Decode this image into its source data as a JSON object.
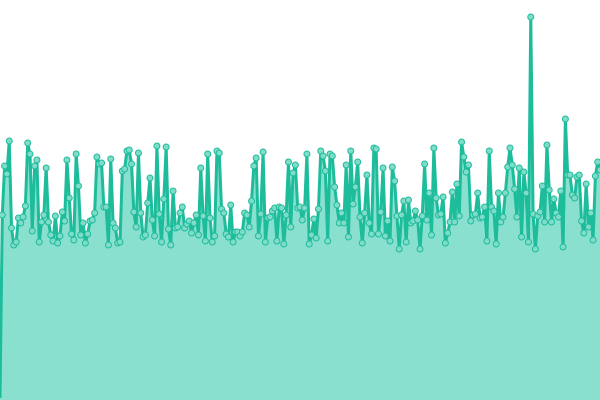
{
  "chart_data": {
    "type": "area",
    "title": "",
    "xlabel": "",
    "ylabel": "",
    "ylim": [
      0,
      400
    ],
    "grid": false,
    "legend": "none",
    "markers": true,
    "colors": {
      "line": "#1dbc9b",
      "fill": "#8ae0cf",
      "marker_fill": "#7fdcc8",
      "marker_stroke": "#1dbc9b"
    },
    "series": [
      {
        "values": [
          2,
          185,
          234,
          226,
          259,
          172,
          155,
          158,
          182,
          177,
          183,
          194,
          257,
          246,
          169,
          234,
          240,
          158,
          178,
          185,
          232,
          178,
          165,
          159,
          184,
          157,
          164,
          188,
          179,
          240,
          202,
          166,
          160,
          246,
          214,
          165,
          177,
          157,
          166,
          179,
          180,
          187,
          243,
          236,
          237,
          193,
          193,
          155,
          241,
          177,
          172,
          157,
          158,
          229,
          231,
          249,
          250,
          236,
          188,
          173,
          247,
          187,
          163,
          165,
          197,
          222,
          180,
          164,
          254,
          186,
          158,
          201,
          253,
          171,
          155,
          209,
          172,
          173,
          187,
          193,
          172,
          176,
          179,
          167,
          177,
          185,
          165,
          232,
          184,
          159,
          246,
          182,
          158,
          164,
          249,
          247,
          191,
          187,
          166,
          163,
          195,
          158,
          168,
          168,
          164,
          168,
          187,
          185,
          173,
          199,
          234,
          242,
          164,
          186,
          248,
          158,
          182,
          183,
          189,
          192,
          159,
          193,
          192,
          156,
          185,
          238,
          173,
          227,
          235,
          192,
          193,
          180,
          192,
          246,
          156,
          165,
          181,
          162,
          191,
          249,
          244,
          229,
          159,
          246,
          244,
          213,
          195,
          177,
          187,
          177,
          235,
          163,
          249,
          196,
          213,
          238,
          183,
          157,
          187,
          225,
          177,
          166,
          252,
          251,
          166,
          188,
          232,
          164,
          179,
          159,
          233,
          219,
          184,
          151,
          185,
          199,
          158,
          200,
          177,
          179,
          189,
          180,
          151,
          184,
          236,
          180,
          207,
          165,
          252,
          202,
          185,
          186,
          203,
          157,
          167,
          178,
          208,
          178,
          216,
          184,
          258,
          243,
          228,
          235,
          179,
          185,
          186,
          207,
          182,
          183,
          193,
          159,
          249,
          193,
          189,
          156,
          207,
          178,
          183,
          207,
          233,
          252,
          235,
          211,
          183,
          232,
          163,
          228,
          207,
          158,
          383,
          186,
          151,
          184,
          188,
          214,
          178,
          255,
          210,
          178,
          201,
          187,
          183,
          209,
          153,
          281,
          225,
          225,
          205,
          202,
          223,
          225,
          179,
          167,
          216,
          173,
          187,
          160,
          224,
          238,
          230
        ]
      }
    ]
  }
}
